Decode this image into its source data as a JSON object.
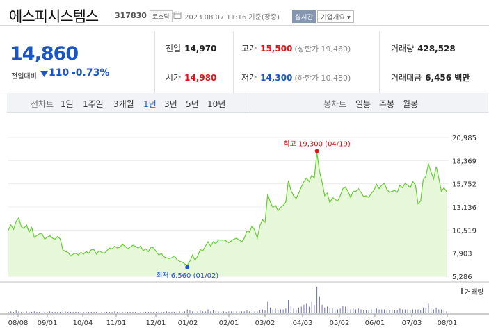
{
  "header": {
    "stock_name": "에스피시스템스",
    "stock_code": "317830",
    "market": "코스닥",
    "datetime": "2023.08.07 11:16 기준(장중)",
    "realtime_label": "실시간",
    "company_info_label": "기업개요 ▾"
  },
  "price": {
    "current": "14,860",
    "change_label": "전일대비",
    "change_amount": "110",
    "change_rate": "-0.73%",
    "direction": "down",
    "down_color": "#1a56c6",
    "up_color": "#e0141b"
  },
  "stats": {
    "prev_close": {
      "label": "전일",
      "value": "14,970"
    },
    "high": {
      "label": "고가",
      "value": "15,500",
      "extra": "(상한가 19,460)"
    },
    "volume": {
      "label": "거래량",
      "value": "428,528"
    },
    "open": {
      "label": "시가",
      "value": "14,980"
    },
    "low": {
      "label": "저가",
      "value": "14,300",
      "extra": "(하한가 10,480)"
    },
    "amount": {
      "label": "거래대금",
      "value": "6,456 백만"
    }
  },
  "tabs": {
    "line_chart_label": "선차트",
    "periods": [
      "1일",
      "1주일",
      "3개월",
      "1년",
      "3년",
      "5년",
      "10년"
    ],
    "active_period": "1년",
    "candle_label": "봉차트",
    "candles": [
      "일봉",
      "주봉",
      "월봉"
    ]
  },
  "chart_data": {
    "type": "area",
    "y_ticks": [
      "20,985",
      "18,369",
      "15,752",
      "13,136",
      "10,519",
      "7,903",
      "5,286"
    ],
    "ylim": [
      5286,
      20985
    ],
    "x_ticks": [
      "08/08",
      "09/01",
      "10/04",
      "11/01",
      "12/01",
      "01/02",
      "02/01",
      "03/02",
      "04/03",
      "05/02",
      "06/01",
      "07/03",
      "08/01"
    ],
    "high_annotation": "최고 19,300 (04/19)",
    "low_annotation": "최저 6,560 (01/02)",
    "high_value": 19300,
    "low_value": 6560,
    "line_color": "#66cc33",
    "fill_color": "#e7f7da",
    "volume_label": "거래량",
    "series": [
      10500,
      11100,
      10600,
      11500,
      11900,
      10900,
      10700,
      11100,
      10300,
      10800,
      9700,
      9900,
      10100,
      10100,
      9500,
      9700,
      9900,
      9600,
      9500,
      9800,
      9500,
      8300,
      8100,
      8000,
      7600,
      7800,
      7900,
      7700,
      8000,
      7800,
      8100,
      7900,
      8300,
      8300,
      7800,
      8200,
      8000,
      7900,
      8200,
      8500,
      8400,
      8700,
      8500,
      8600,
      8900,
      8700,
      8400,
      8600,
      8800,
      8700,
      8500,
      8700,
      8200,
      8400,
      8100,
      8600,
      8500,
      8100,
      7700,
      7900,
      7500,
      7400,
      7300,
      7400,
      7600,
      7200,
      7000,
      6900,
      6700,
      6560,
      7000,
      7700,
      7100,
      7600,
      8300,
      8200,
      8700,
      9200,
      8700,
      9200,
      9000,
      9400,
      9400,
      9400,
      9300,
      9100,
      9300,
      9500,
      9600,
      9400,
      9200,
      9600,
      10400,
      10300,
      11000,
      10500,
      9600,
      11000,
      11700,
      11400,
      14600,
      13700,
      13100,
      13300,
      12700,
      13100,
      13300,
      13700,
      16100,
      15000,
      14400,
      14100,
      14700,
      15400,
      16000,
      16400,
      16000,
      16700,
      16400,
      19300,
      17200,
      15900,
      14400,
      14700,
      13600,
      14200,
      14000,
      13800,
      14400,
      15200,
      15400,
      14900,
      14200,
      14900,
      14900,
      15200,
      14800,
      14300,
      14400,
      14200,
      14700,
      15000,
      15700,
      15200,
      15600,
      15800,
      15100,
      14800,
      14900,
      15000,
      14800,
      15600,
      15300,
      15800,
      15600,
      15300,
      16000,
      15600,
      13500,
      13800,
      16200,
      16600,
      18000,
      17100,
      16300,
      17700,
      16400,
      14900,
      15300,
      14860
    ],
    "volume": [
      1,
      2,
      1,
      3,
      2,
      1,
      1,
      2,
      1,
      1,
      2,
      1,
      1,
      1,
      1,
      1,
      2,
      1,
      1,
      1,
      1,
      3,
      2,
      1,
      1,
      1,
      1,
      1,
      1,
      1,
      1,
      1,
      1,
      1,
      1,
      1,
      1,
      1,
      1,
      1,
      1,
      2,
      1,
      1,
      1,
      1,
      1,
      1,
      1,
      1,
      1,
      1,
      1,
      1,
      1,
      1,
      1,
      1,
      2,
      1,
      1,
      2,
      1,
      1,
      1,
      2,
      2,
      1,
      2,
      4,
      3,
      2,
      2,
      2,
      3,
      2,
      2,
      4,
      2,
      3,
      2,
      2,
      2,
      2,
      1,
      2,
      2,
      2,
      2,
      2,
      2,
      2,
      3,
      2,
      3,
      2,
      2,
      3,
      4,
      3,
      12,
      6,
      4,
      5,
      3,
      4,
      4,
      5,
      14,
      8,
      5,
      4,
      6,
      7,
      9,
      10,
      7,
      12,
      9,
      28,
      18,
      9,
      6,
      7,
      5,
      5,
      4,
      4,
      5,
      8,
      7,
      5,
      4,
      5,
      4,
      5,
      4,
      3,
      3,
      3,
      4,
      4,
      5,
      4,
      4,
      4,
      3,
      3,
      3,
      3,
      3,
      5,
      4,
      4,
      4,
      3,
      4,
      4,
      4,
      3,
      6,
      5,
      10,
      6,
      4,
      6,
      4,
      4,
      3,
      2
    ]
  }
}
